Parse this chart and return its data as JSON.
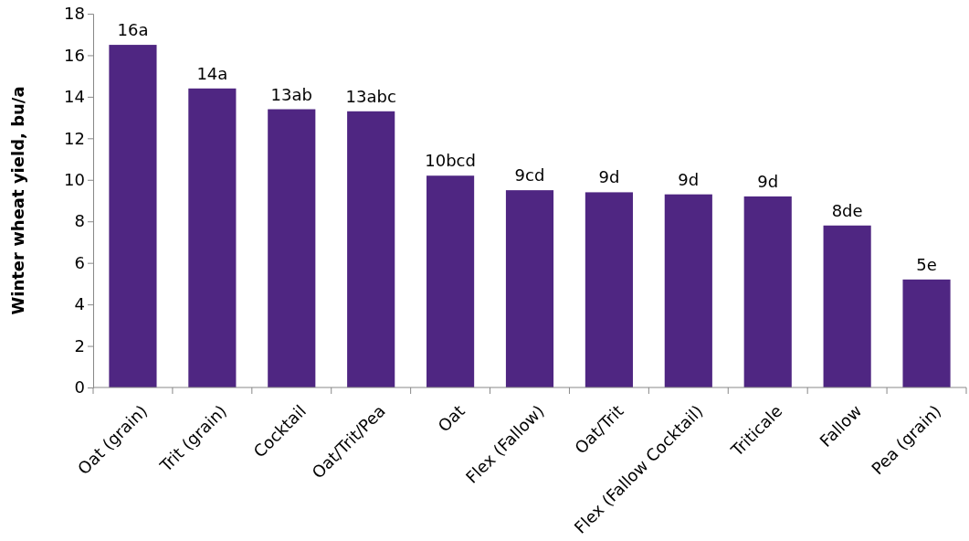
{
  "chart_data": {
    "type": "bar",
    "ylabel": "Winter wheat yield, bu/a",
    "categories": [
      "Oat (grain)",
      "Trit (grain)",
      "Cocktail",
      "Oat/Trit/Pea",
      "Oat",
      "Flex (Fallow)",
      "Oat/Trit",
      "Flex (Fallow Cocktail)",
      "Triticale",
      "Fallow",
      "Pea (grain)"
    ],
    "values": [
      16.5,
      14.4,
      13.4,
      13.3,
      10.2,
      9.5,
      9.4,
      9.3,
      9.2,
      7.8,
      5.2
    ],
    "value_labels": [
      "16a",
      "14a",
      "13ab",
      "13abc",
      "10bcd",
      "9cd",
      "9d",
      "9d",
      "9d",
      "8de",
      "5e"
    ],
    "color": "#4f2682",
    "ylim": [
      0,
      18
    ],
    "yticks": [
      0,
      2,
      4,
      6,
      8,
      10,
      12,
      14,
      16,
      18
    ],
    "grid": false
  }
}
